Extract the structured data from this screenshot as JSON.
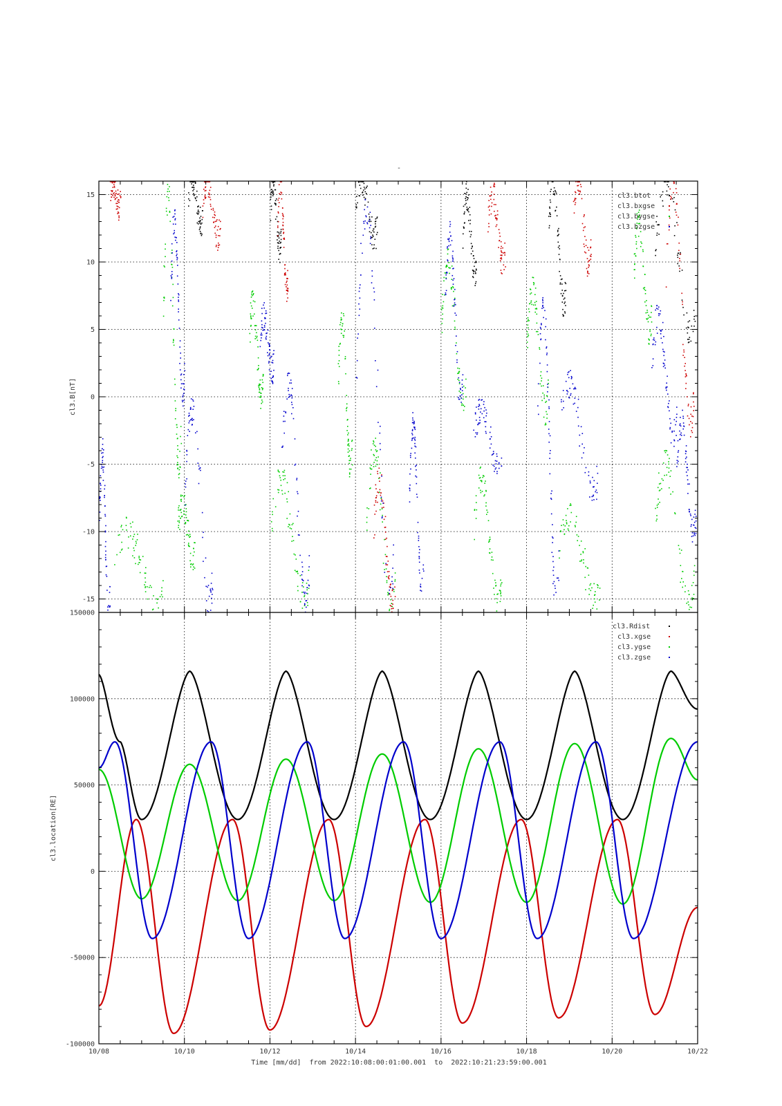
{
  "page_title": "-",
  "x_axis": {
    "tick_labels": [
      "10/08",
      "10/10",
      "10/12",
      "10/14",
      "10/16",
      "10/18",
      "10/20",
      "10/22"
    ],
    "tick_days": [
      0,
      2,
      4,
      6,
      8,
      10,
      12,
      14
    ],
    "label": "Time [mm/dd]  from 2022:10:08:00:01:00.001  to  2022:10:21:23:59:00.001",
    "range_start": "2022:10:08:00:01:00.001",
    "range_end": "2022:10:21:23:59:00.001"
  },
  "colors": {
    "black": "#000000",
    "red": "#cc0000",
    "green": "#00cc00",
    "blue": "#0000cc"
  },
  "chart_data": [
    {
      "type": "scatter",
      "ylabel": "cl3.B[nT]",
      "ylim": [
        -16,
        16
      ],
      "yticks": [
        15,
        10,
        5,
        0,
        -5,
        -10,
        -15
      ],
      "xlim": [
        "10/08",
        "10/22"
      ],
      "grid": true,
      "legend_position": "top-right",
      "legend": [
        "cl3.btot",
        "cl3.bxgse",
        "cl3.bygse",
        "cl3.bzgse"
      ],
      "series": [
        {
          "name": "cl3.btot",
          "color": "#000000",
          "segments": [
            {
              "x": [
                "10/10 02:00",
                "10/10 10:00"
              ],
              "y": [
                13,
                16
              ]
            },
            {
              "x": [
                "10/12 00:00",
                "10/12 06:00"
              ],
              "y": [
                11,
                16
              ]
            },
            {
              "x": [
                "10/14 00:00",
                "10/14 12:00"
              ],
              "y": [
                12,
                16
              ]
            },
            {
              "x": [
                "10/16 12:00",
                "10/16 20:00"
              ],
              "y": [
                9,
                15
              ]
            },
            {
              "x": [
                "10/18 12:00",
                "10/18 22:00"
              ],
              "y": [
                7,
                16
              ]
            },
            {
              "x": [
                "10/21 00:00",
                "10/21 23:00"
              ],
              "y": [
                5,
                16
              ]
            }
          ]
        },
        {
          "name": "cl3.bxgse",
          "color": "#cc0000",
          "segments": [
            {
              "x": [
                "10/08 06:00",
                "10/08 12:00"
              ],
              "y": [
                14,
                16
              ]
            },
            {
              "x": [
                "10/10 10:00",
                "10/10 20:00"
              ],
              "y": [
                12,
                16
              ]
            },
            {
              "x": [
                "10/12 04:00",
                "10/12 10:00"
              ],
              "y": [
                8,
                16
              ]
            },
            {
              "x": [
                "10/14 10:00",
                "10/14 22:00"
              ],
              "y": [
                -15,
                -6
              ]
            },
            {
              "x": [
                "10/17 02:00",
                "10/17 12:00"
              ],
              "y": [
                10,
                15
              ]
            },
            {
              "x": [
                "10/19 02:00",
                "10/19 12:00"
              ],
              "y": [
                10,
                16
              ]
            },
            {
              "x": [
                "10/21 06:00",
                "10/21 22:00"
              ],
              "y": [
                -2,
                16
              ]
            }
          ]
        },
        {
          "name": "cl3.bygse",
          "color": "#00cc00",
          "segments": [
            {
              "x": [
                "10/08 08:00",
                "10/09 12:00"
              ],
              "y": [
                -15,
                -10
              ]
            },
            {
              "x": [
                "10/09 12:00",
                "10/09 22:00"
              ],
              "y": [
                -5,
                15
              ]
            },
            {
              "x": [
                "10/09 20:00",
                "10/10 06:00"
              ],
              "y": [
                -12,
                -8
              ]
            },
            {
              "x": [
                "10/11 12:00",
                "10/11 20:00"
              ],
              "y": [
                0,
                7
              ]
            },
            {
              "x": [
                "10/12 00:00",
                "10/12 22:00"
              ],
              "y": [
                -15,
                -6
              ]
            },
            {
              "x": [
                "10/13 14:00",
                "10/13 22:00"
              ],
              "y": [
                -5,
                6
              ]
            },
            {
              "x": [
                "10/14 06:00",
                "10/14 22:00"
              ],
              "y": [
                -16,
                -4
              ]
            },
            {
              "x": [
                "10/16 00:00",
                "10/16 14:00"
              ],
              "y": [
                0,
                10
              ]
            },
            {
              "x": [
                "10/16 18:00",
                "10/17 10:00"
              ],
              "y": [
                -15,
                -6
              ]
            },
            {
              "x": [
                "10/18 00:00",
                "10/18 12:00"
              ],
              "y": [
                -1,
                8
              ]
            },
            {
              "x": [
                "10/18 18:00",
                "10/19 18:00"
              ],
              "y": [
                -15,
                -9
              ]
            },
            {
              "x": [
                "10/20 12:00",
                "10/20 22:00"
              ],
              "y": [
                5,
                13
              ]
            },
            {
              "x": [
                "10/21 00:00",
                "10/21 22:00"
              ],
              "y": [
                -15,
                -5
              ]
            }
          ]
        },
        {
          "name": "cl3.bzgse",
          "color": "#0000cc",
          "segments": [
            {
              "x": [
                "10/08 00:00",
                "10/08 06:00"
              ],
              "y": [
                -16,
                -4
              ]
            },
            {
              "x": [
                "10/09 16:00",
                "10/10 00:00"
              ],
              "y": [
                0,
                13
              ]
            },
            {
              "x": [
                "10/10 00:00",
                "10/10 16:00"
              ],
              "y": [
                -15,
                -1
              ]
            },
            {
              "x": [
                "10/11 18:00",
                "10/12 02:00"
              ],
              "y": [
                2,
                6
              ]
            },
            {
              "x": [
                "10/12 06:00",
                "10/12 22:00"
              ],
              "y": [
                -15,
                1
              ]
            },
            {
              "x": [
                "10/14 00:00",
                "10/14 22:00"
              ],
              "y": [
                -15,
                14
              ]
            },
            {
              "x": [
                "10/15 06:00",
                "10/15 14:00"
              ],
              "y": [
                -14,
                -2
              ]
            },
            {
              "x": [
                "10/16 02:00",
                "10/16 12:00"
              ],
              "y": [
                0,
                12
              ]
            },
            {
              "x": [
                "10/16 18:00",
                "10/17 10:00"
              ],
              "y": [
                -5,
                -1
              ]
            },
            {
              "x": [
                "10/18 06:00",
                "10/18 18:00"
              ],
              "y": [
                -15,
                7
              ]
            },
            {
              "x": [
                "10/18 18:00",
                "10/19 16:00"
              ],
              "y": [
                -7,
                1
              ]
            },
            {
              "x": [
                "10/20 22:00",
                "10/21 12:00"
              ],
              "y": [
                -3,
                6
              ]
            },
            {
              "x": [
                "10/21 12:00",
                "10/21 23:00"
              ],
              "y": [
                -10,
                -2
              ]
            }
          ]
        }
      ]
    },
    {
      "type": "line",
      "ylabel": "cl3.location[RE]",
      "ylim": [
        -100000,
        150000
      ],
      "yticks": [
        150000,
        100000,
        50000,
        0,
        -50000,
        -100000
      ],
      "ytick_labels": [
        "150000",
        "100000",
        "50000",
        "0",
        "-50000",
        "-100000"
      ],
      "xlim": [
        "10/08",
        "10/22"
      ],
      "grid": true,
      "legend_position": "top-right",
      "legend": [
        "cl3.Rdist",
        "cl3.xgse",
        "cl3.ygse",
        "cl3.zgse"
      ],
      "orbit_period_days": 2.25,
      "series": [
        {
          "name": "cl3.Rdist",
          "color": "#000000",
          "x": [
            "10/08",
            "10/08 12:00",
            "10/09",
            "10/10 03:00",
            "10/11 06:00",
            "10/12 09:00",
            "10/13 12:00",
            "10/14 15:00",
            "10/15 18:00",
            "10/16 21:00",
            "10/18",
            "10/19 03:00",
            "10/20 06:00",
            "10/21 09:00",
            "10/22"
          ],
          "y": [
            114000,
            75000,
            30000,
            116000,
            30000,
            116000,
            30000,
            116000,
            30000,
            116000,
            30000,
            116000,
            30000,
            116000,
            94000
          ]
        },
        {
          "name": "cl3.xgse",
          "color": "#cc0000",
          "x": [
            "10/08",
            "10/08 21:00",
            "10/09 18:00",
            "10/11 03:00",
            "10/12 00:00",
            "10/13 09:00",
            "10/14 06:00",
            "10/15 15:00",
            "10/16 12:00",
            "10/17 21:00",
            "10/18 18:00",
            "10/20 03:00",
            "10/21 00:00",
            "10/22"
          ],
          "y": [
            -78000,
            30000,
            -94000,
            30000,
            -92000,
            30000,
            -90000,
            30000,
            -88000,
            30000,
            -85000,
            30000,
            -83000,
            -21000
          ]
        },
        {
          "name": "cl3.ygse",
          "color": "#00cc00",
          "x": [
            "10/08",
            "10/09 00:00",
            "10/10 03:00",
            "10/11 06:00",
            "10/12 09:00",
            "10/13 12:00",
            "10/14 15:00",
            "10/15 18:00",
            "10/16 21:00",
            "10/18",
            "10/19 03:00",
            "10/20 06:00",
            "10/21 09:00",
            "10/22"
          ],
          "y": [
            59000,
            -16000,
            62000,
            -17000,
            65000,
            -17000,
            68000,
            -18000,
            71000,
            -18000,
            74000,
            -19000,
            77000,
            53000
          ]
        },
        {
          "name": "cl3.zgse",
          "color": "#0000cc",
          "x": [
            "10/08",
            "10/08 09:00",
            "10/09 06:00",
            "10/10 15:00",
            "10/11 12:00",
            "10/12 21:00",
            "10/13 18:00",
            "10/15 03:00",
            "10/16 00:00",
            "10/17 09:00",
            "10/18 06:00",
            "10/19 15:00",
            "10/20 12:00",
            "10/22"
          ],
          "y": [
            60000,
            75000,
            -39000,
            75000,
            -39000,
            75000,
            -39000,
            75000,
            -39000,
            75000,
            -39000,
            75000,
            -39000,
            75000
          ]
        }
      ]
    }
  ]
}
